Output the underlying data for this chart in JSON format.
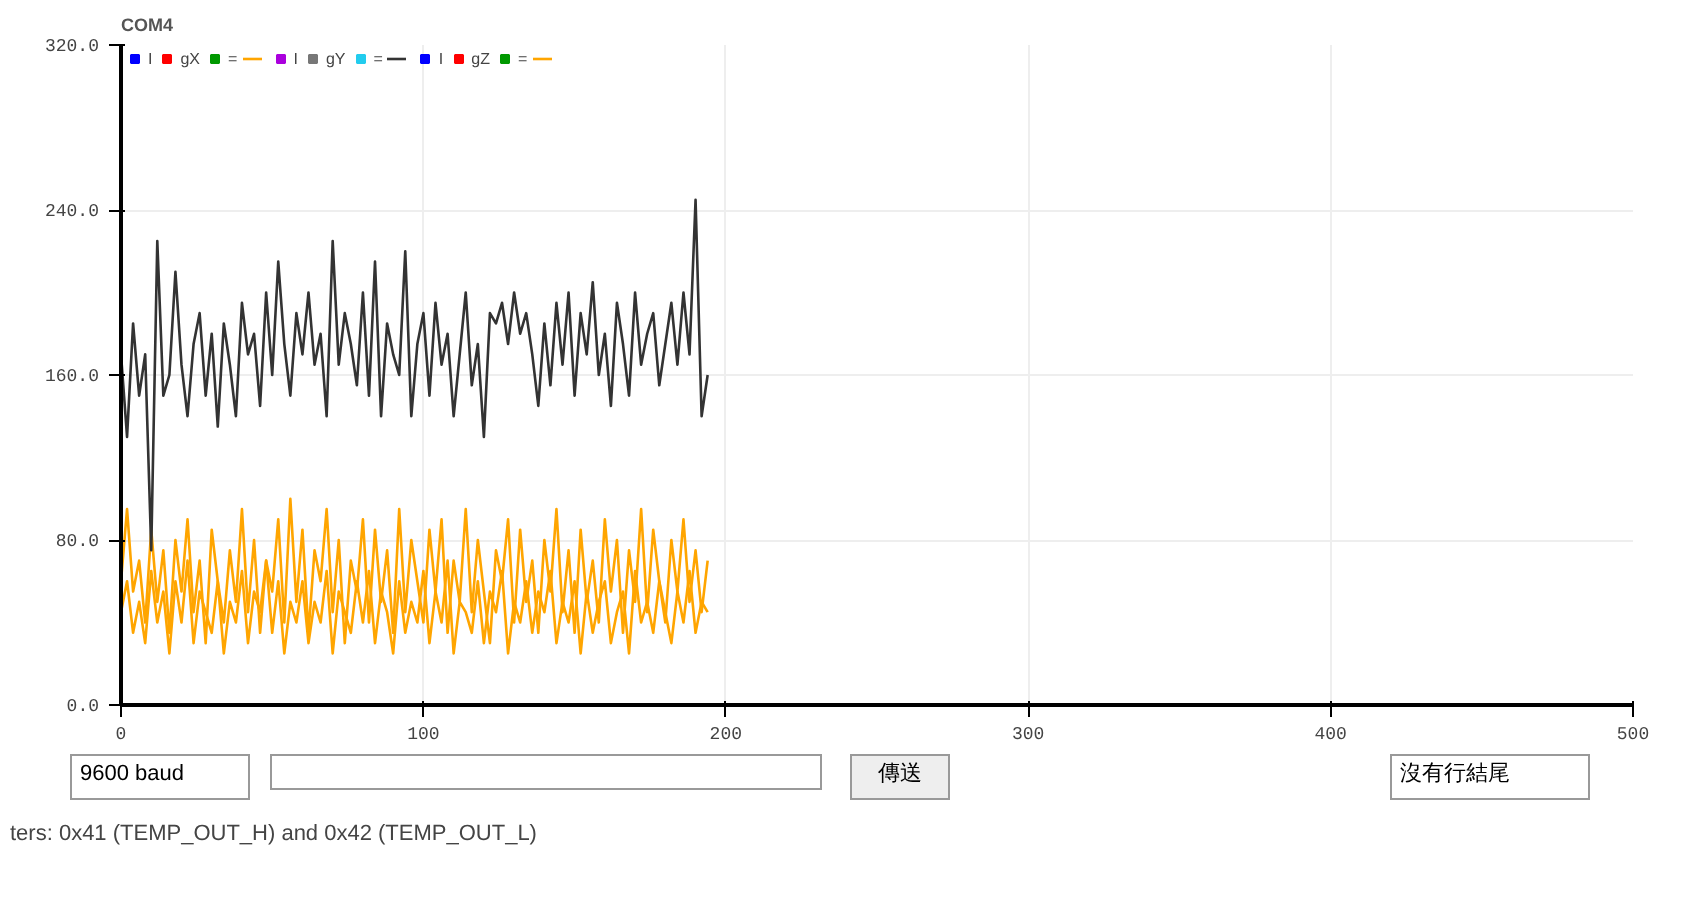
{
  "chart_data": {
    "type": "line",
    "title": "COM4",
    "x": [
      0,
      2,
      4,
      6,
      8,
      10,
      12,
      14,
      16,
      18,
      20,
      22,
      24,
      26,
      28,
      30,
      32,
      34,
      36,
      38,
      40,
      42,
      44,
      46,
      48,
      50,
      52,
      54,
      56,
      58,
      60,
      62,
      64,
      66,
      68,
      70,
      72,
      74,
      76,
      78,
      80,
      82,
      84,
      86,
      88,
      90,
      92,
      94,
      96,
      98,
      100,
      102,
      104,
      106,
      108,
      110,
      112,
      114,
      116,
      118,
      120,
      122,
      124,
      126,
      128,
      130,
      132,
      134,
      136,
      138,
      140,
      142,
      144,
      146,
      148,
      150,
      152,
      154,
      156,
      158,
      160,
      162,
      164,
      166,
      168,
      170,
      172,
      174,
      176,
      178,
      180,
      182,
      184,
      186,
      188,
      190,
      192,
      194
    ],
    "series": [
      {
        "name": "I",
        "color": "#0000ff",
        "values": [
          null,
          null,
          null,
          null,
          null,
          null,
          null,
          null,
          null,
          null,
          null,
          null,
          null,
          null,
          null,
          null,
          null,
          null,
          null,
          null,
          null,
          null,
          null,
          null,
          null,
          null,
          null,
          null,
          null,
          null,
          null,
          null,
          null,
          null,
          null,
          null,
          null,
          null,
          null,
          null,
          null,
          null,
          null,
          null,
          null,
          null,
          null,
          null,
          null,
          null,
          null,
          null,
          null,
          null,
          null,
          null,
          null,
          null,
          null,
          null,
          null,
          null,
          null,
          null,
          null,
          null,
          null,
          null,
          null,
          null,
          null,
          null,
          null,
          null,
          null,
          null,
          null,
          null,
          null,
          null,
          null,
          null,
          null,
          null,
          null,
          null,
          null,
          null,
          null,
          null,
          null,
          null,
          null,
          null,
          null,
          null,
          null,
          null
        ]
      },
      {
        "name": "gX",
        "color": "#ff0000",
        "values": [
          null,
          null,
          null,
          null,
          null,
          null,
          null,
          null,
          null,
          null,
          null,
          null,
          null,
          null,
          null,
          null,
          null,
          null,
          null,
          null,
          null,
          null,
          null,
          null,
          null,
          null,
          null,
          null,
          null,
          null,
          null,
          null,
          null,
          null,
          null,
          null,
          null,
          null,
          null,
          null,
          null,
          null,
          null,
          null,
          null,
          null,
          null,
          null,
          null,
          null,
          null,
          null,
          null,
          null,
          null,
          null,
          null,
          null,
          null,
          null,
          null,
          null,
          null,
          null,
          null,
          null,
          null,
          null,
          null,
          null,
          null,
          null,
          null,
          null,
          null,
          null,
          null,
          null,
          null,
          null,
          null,
          null,
          null,
          null,
          null,
          null,
          null,
          null,
          null,
          null,
          null,
          null,
          null,
          null,
          null,
          null,
          null,
          null
        ]
      },
      {
        "name": "=",
        "color": "#009900",
        "values": [
          null,
          null,
          null,
          null,
          null,
          null,
          null,
          null,
          null,
          null,
          null,
          null,
          null,
          null,
          null,
          null,
          null,
          null,
          null,
          null,
          null,
          null,
          null,
          null,
          null,
          null,
          null,
          null,
          null,
          null,
          null,
          null,
          null,
          null,
          null,
          null,
          null,
          null,
          null,
          null,
          null,
          null,
          null,
          null,
          null,
          null,
          null,
          null,
          null,
          null,
          null,
          null,
          null,
          null,
          null,
          null,
          null,
          null,
          null,
          null,
          null,
          null,
          null,
          null,
          null,
          null,
          null,
          null,
          null,
          null,
          null,
          null,
          null,
          null,
          null,
          null,
          null,
          null,
          null,
          null,
          null,
          null,
          null,
          null,
          null,
          null,
          null,
          null,
          null,
          null,
          null,
          null,
          null,
          null,
          null,
          null,
          null,
          null
        ]
      },
      {
        "color": "#ffa500",
        "values": [
          60,
          95,
          55,
          70,
          40,
          85,
          50,
          75,
          35,
          80,
          55,
          90,
          45,
          70,
          30,
          85,
          60,
          40,
          75,
          50,
          95,
          45,
          80,
          35,
          70,
          55,
          90,
          40,
          100,
          50,
          85,
          35,
          75,
          60,
          95,
          45,
          80,
          30,
          70,
          55,
          90,
          40,
          85,
          50,
          75,
          35,
          95,
          45,
          80,
          60,
          40,
          85,
          55,
          90,
          35,
          70,
          50,
          95,
          45,
          80,
          55,
          30,
          75,
          60,
          90,
          40,
          85,
          50,
          70,
          35,
          80,
          55,
          95,
          45,
          75,
          35,
          85,
          50,
          70,
          40,
          90,
          55,
          80,
          35,
          75,
          50,
          95,
          45,
          85,
          60,
          40,
          80,
          55,
          90,
          50,
          75,
          45,
          70
        ]
      },
      {
        "name": "I",
        "color": "#aa00dd",
        "values": [
          null,
          null,
          null,
          null,
          null,
          null,
          null,
          null,
          null,
          null,
          null,
          null,
          null,
          null,
          null,
          null,
          null,
          null,
          null,
          null,
          null,
          null,
          null,
          null,
          null,
          null,
          null,
          null,
          null,
          null,
          null,
          null,
          null,
          null,
          null,
          null,
          null,
          null,
          null,
          null,
          null,
          null,
          null,
          null,
          null,
          null,
          null,
          null,
          null,
          null,
          null,
          null,
          null,
          null,
          null,
          null,
          null,
          null,
          null,
          null,
          null,
          null,
          null,
          null,
          null,
          null,
          null,
          null,
          null,
          null,
          null,
          null,
          null,
          null,
          null,
          null,
          null,
          null,
          null,
          null,
          null,
          null,
          null,
          null,
          null,
          null,
          null,
          null,
          null,
          null,
          null,
          null,
          null,
          null,
          null,
          null,
          null,
          null
        ]
      },
      {
        "name": "gY",
        "color": "#777777",
        "values": [
          null,
          null,
          null,
          null,
          null,
          null,
          null,
          null,
          null,
          null,
          null,
          null,
          null,
          null,
          null,
          null,
          null,
          null,
          null,
          null,
          null,
          null,
          null,
          null,
          null,
          null,
          null,
          null,
          null,
          null,
          null,
          null,
          null,
          null,
          null,
          null,
          null,
          null,
          null,
          null,
          null,
          null,
          null,
          null,
          null,
          null,
          null,
          null,
          null,
          null,
          null,
          null,
          null,
          null,
          null,
          null,
          null,
          null,
          null,
          null,
          null,
          null,
          null,
          null,
          null,
          null,
          null,
          null,
          null,
          null,
          null,
          null,
          null,
          null,
          null,
          null,
          null,
          null,
          null,
          null,
          null,
          null,
          null,
          null,
          null,
          null,
          null,
          null,
          null,
          null,
          null,
          null,
          null,
          null,
          null,
          null,
          null,
          null
        ]
      },
      {
        "name": "=",
        "color": "#22ccee",
        "values": [
          null,
          null,
          null,
          null,
          null,
          null,
          null,
          null,
          null,
          null,
          null,
          null,
          null,
          null,
          null,
          null,
          null,
          null,
          null,
          null,
          null,
          null,
          null,
          null,
          null,
          null,
          null,
          null,
          null,
          null,
          null,
          null,
          null,
          null,
          null,
          null,
          null,
          null,
          null,
          null,
          null,
          null,
          null,
          null,
          null,
          null,
          null,
          null,
          null,
          null,
          null,
          null,
          null,
          null,
          null,
          null,
          null,
          null,
          null,
          null,
          null,
          null,
          null,
          null,
          null,
          null,
          null,
          null,
          null,
          null,
          null,
          null,
          null,
          null,
          null,
          null,
          null,
          null,
          null,
          null,
          null,
          null,
          null,
          null,
          null,
          null,
          null,
          null,
          null,
          null,
          null,
          null,
          null,
          null,
          null,
          null,
          null,
          null
        ]
      },
      {
        "color": "#333333",
        "values": [
          170,
          130,
          185,
          150,
          170,
          75,
          225,
          150,
          160,
          210,
          165,
          140,
          175,
          190,
          150,
          180,
          135,
          185,
          165,
          140,
          195,
          170,
          180,
          145,
          200,
          160,
          215,
          175,
          150,
          190,
          170,
          200,
          165,
          180,
          140,
          225,
          165,
          190,
          175,
          155,
          200,
          150,
          215,
          140,
          185,
          170,
          160,
          220,
          140,
          175,
          190,
          150,
          195,
          165,
          180,
          140,
          170,
          200,
          155,
          175,
          130,
          190,
          185,
          195,
          175,
          200,
          180,
          190,
          170,
          145,
          185,
          155,
          195,
          165,
          200,
          150,
          190,
          170,
          205,
          160,
          180,
          145,
          195,
          175,
          150,
          200,
          165,
          180,
          190,
          155,
          175,
          195,
          165,
          200,
          170,
          245,
          140,
          160
        ]
      },
      {
        "name": "I",
        "color": "#0000ff",
        "values": [
          null,
          null,
          null,
          null,
          null,
          null,
          null,
          null,
          null,
          null,
          null,
          null,
          null,
          null,
          null,
          null,
          null,
          null,
          null,
          null,
          null,
          null,
          null,
          null,
          null,
          null,
          null,
          null,
          null,
          null,
          null,
          null,
          null,
          null,
          null,
          null,
          null,
          null,
          null,
          null,
          null,
          null,
          null,
          null,
          null,
          null,
          null,
          null,
          null,
          null,
          null,
          null,
          null,
          null,
          null,
          null,
          null,
          null,
          null,
          null,
          null,
          null,
          null,
          null,
          null,
          null,
          null,
          null,
          null,
          null,
          null,
          null,
          null,
          null,
          null,
          null,
          null,
          null,
          null,
          null,
          null,
          null,
          null,
          null,
          null,
          null,
          null,
          null,
          null,
          null,
          null,
          null,
          null,
          null,
          null,
          null,
          null,
          null
        ]
      },
      {
        "name": "gZ",
        "color": "#ff0000",
        "values": [
          null,
          null,
          null,
          null,
          null,
          null,
          null,
          null,
          null,
          null,
          null,
          null,
          null,
          null,
          null,
          null,
          null,
          null,
          null,
          null,
          null,
          null,
          null,
          null,
          null,
          null,
          null,
          null,
          null,
          null,
          null,
          null,
          null,
          null,
          null,
          null,
          null,
          null,
          null,
          null,
          null,
          null,
          null,
          null,
          null,
          null,
          null,
          null,
          null,
          null,
          null,
          null,
          null,
          null,
          null,
          null,
          null,
          null,
          null,
          null,
          null,
          null,
          null,
          null,
          null,
          null,
          null,
          null,
          null,
          null,
          null,
          null,
          null,
          null,
          null,
          null,
          null,
          null,
          null,
          null,
          null,
          null,
          null,
          null,
          null,
          null,
          null,
          null,
          null,
          null,
          null,
          null,
          null,
          null,
          null,
          null,
          null,
          null
        ]
      },
      {
        "name": "=",
        "color": "#009900",
        "values": [
          null,
          null,
          null,
          null,
          null,
          null,
          null,
          null,
          null,
          null,
          null,
          null,
          null,
          null,
          null,
          null,
          null,
          null,
          null,
          null,
          null,
          null,
          null,
          null,
          null,
          null,
          null,
          null,
          null,
          null,
          null,
          null,
          null,
          null,
          null,
          null,
          null,
          null,
          null,
          null,
          null,
          null,
          null,
          null,
          null,
          null,
          null,
          null,
          null,
          null,
          null,
          null,
          null,
          null,
          null,
          null,
          null,
          null,
          null,
          null,
          null,
          null,
          null,
          null,
          null,
          null,
          null,
          null,
          null,
          null,
          null,
          null,
          null,
          null,
          null,
          null,
          null,
          null,
          null,
          null,
          null,
          null,
          null,
          null,
          null,
          null,
          null,
          null,
          null,
          null,
          null,
          null,
          null,
          null,
          null,
          null,
          null,
          null
        ]
      },
      {
        "color": "#ffa500",
        "values": [
          45,
          60,
          35,
          50,
          30,
          65,
          40,
          55,
          25,
          60,
          40,
          70,
          30,
          55,
          45,
          35,
          60,
          25,
          50,
          40,
          65,
          30,
          55,
          45,
          70,
          35,
          60,
          25,
          50,
          40,
          60,
          30,
          50,
          40,
          65,
          25,
          55,
          45,
          35,
          60,
          40,
          65,
          30,
          55,
          45,
          25,
          60,
          35,
          50,
          40,
          65,
          30,
          55,
          40,
          70,
          25,
          50,
          45,
          35,
          60,
          30,
          55,
          45,
          65,
          25,
          50,
          40,
          60,
          35,
          55,
          45,
          65,
          30,
          50,
          40,
          60,
          25,
          55,
          35,
          50,
          60,
          30,
          45,
          55,
          25,
          65,
          40,
          50,
          35,
          60,
          45,
          30,
          55,
          40,
          65,
          35,
          50,
          45
        ]
      }
    ],
    "xlim": [
      0,
      500
    ],
    "xticks": [
      0,
      100,
      200,
      300,
      400,
      500
    ],
    "ylim": [
      0,
      320
    ],
    "yticks": [
      {
        "value": 0,
        "label": "0.0"
      },
      {
        "value": 80,
        "label": "80.0"
      },
      {
        "value": 160,
        "label": "160.0"
      },
      {
        "value": 240,
        "label": "240.0"
      },
      {
        "value": 320,
        "label": "320.0"
      }
    ],
    "grid": true,
    "legend": "top left",
    "marker": "none",
    "line_style": "solid",
    "annotations": [
      "9600 baud",
      "傳送",
      "沒有行結尾",
      "ters: 0x41 (TEMP_OUT_H) and 0x42 (TEMP_OUT_L)"
    ]
  }
}
